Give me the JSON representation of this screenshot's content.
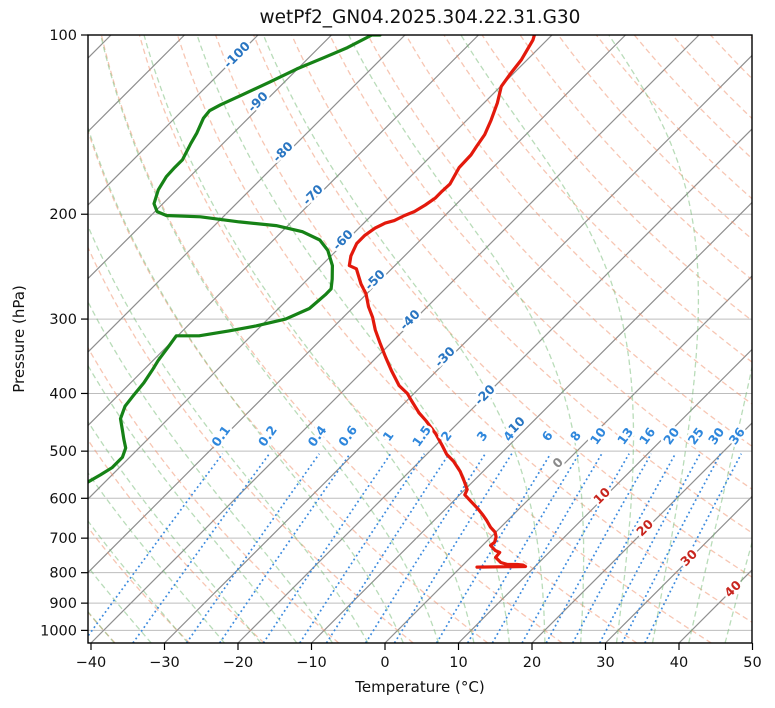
{
  "title": "wetPf2_GN04.2025.304.22.31.G30",
  "chart_data": {
    "type": "line",
    "projection": "skew-t-log-p",
    "title": "wetPf2_GN04.2025.304.22.31.G30",
    "xlabel": "Temperature (°C)",
    "ylabel": "Pressure (hPa)",
    "xlim": [
      -40.4,
      50
    ],
    "pressure_lim": [
      1050,
      100
    ],
    "grid": true,
    "x_ticks": [
      {
        "value": -40,
        "label": "−40"
      },
      {
        "value": -30,
        "label": "−30"
      },
      {
        "value": -20,
        "label": "−20"
      },
      {
        "value": -10,
        "label": "−10"
      },
      {
        "value": 0,
        "label": "0"
      },
      {
        "value": 10,
        "label": "10"
      },
      {
        "value": 20,
        "label": "20"
      },
      {
        "value": 30,
        "label": "30"
      },
      {
        "value": 40,
        "label": "40"
      },
      {
        "value": 50,
        "label": "50"
      }
    ],
    "p_ticks": [
      {
        "value": 100,
        "label": "100"
      },
      {
        "value": 200,
        "label": "200"
      },
      {
        "value": 300,
        "label": "300"
      },
      {
        "value": 400,
        "label": "400"
      },
      {
        "value": 500,
        "label": "500"
      },
      {
        "value": 600,
        "label": "600"
      },
      {
        "value": 700,
        "label": "700"
      },
      {
        "value": 800,
        "label": "800"
      },
      {
        "value": 900,
        "label": "900"
      },
      {
        "value": 1000,
        "label": "1000"
      }
    ],
    "isotherms": {
      "start_c": -150,
      "end_c": 50,
      "step_c": 10,
      "color": "#8f8f8f"
    },
    "isotherm_labels": [
      {
        "value": -100,
        "text": "-100",
        "color": "#2a76c2"
      },
      {
        "value": -90,
        "text": "-90",
        "color": "#2a76c2"
      },
      {
        "value": -80,
        "text": "-80",
        "color": "#2a76c2"
      },
      {
        "value": -70,
        "text": "-70",
        "color": "#2a76c2"
      },
      {
        "value": -60,
        "text": "-60",
        "color": "#2a76c2"
      },
      {
        "value": -50,
        "text": "-50",
        "color": "#2a76c2"
      },
      {
        "value": -40,
        "text": "-40",
        "color": "#2a76c2"
      },
      {
        "value": -30,
        "text": "-30",
        "color": "#2a76c2"
      },
      {
        "value": -20,
        "text": "-20",
        "color": "#2a76c2"
      },
      {
        "value": -10,
        "text": "-10",
        "color": "#2a76c2"
      },
      {
        "value": 0,
        "text": "0",
        "color": "#8a8a8a"
      },
      {
        "value": 10,
        "text": "10",
        "color": "#c8261f"
      },
      {
        "value": 20,
        "text": "20",
        "color": "#c8261f"
      },
      {
        "value": 30,
        "text": "30",
        "color": "#c8261f"
      },
      {
        "value": 40,
        "text": "40",
        "color": "#c8261f"
      }
    ],
    "dry_adiabats": {
      "start_c": -40,
      "end_c": 200,
      "step_c": 10,
      "color": "#ef8d68",
      "opacity": 0.5
    },
    "moist_adiabats": {
      "start_c": -60,
      "end_c": 60,
      "step_c": 5,
      "color": "#74b974",
      "opacity": 0.5
    },
    "mixing_ratio_lines": {
      "values_g_per_kg": [
        0.1,
        0.2,
        0.4,
        0.6,
        1,
        1.5,
        2,
        3,
        4,
        6,
        8,
        10,
        13,
        16,
        20,
        25,
        30,
        36
      ],
      "color": "#3b8ade",
      "label_color": "#2f87dc",
      "p_top": 505
    },
    "series": [
      {
        "name": "temperature",
        "color": "#e3190c",
        "points_p_t": [
          [
            100,
            -62.4
          ],
          [
            102,
            -61.9
          ],
          [
            110,
            -60.8
          ],
          [
            116,
            -60.4
          ],
          [
            122,
            -59.9
          ],
          [
            130,
            -58.2
          ],
          [
            139,
            -56.7
          ],
          [
            147,
            -55.6
          ],
          [
            154,
            -55.1
          ],
          [
            159,
            -54.7
          ],
          [
            167,
            -54.6
          ],
          [
            178,
            -53.6
          ],
          [
            183,
            -53.7
          ],
          [
            188,
            -53.7
          ],
          [
            193,
            -54.1
          ],
          [
            198,
            -54.7
          ],
          [
            201,
            -55.5
          ],
          [
            205,
            -56.2
          ],
          [
            207,
            -57.1
          ],
          [
            211,
            -57.8
          ],
          [
            217,
            -58.2
          ],
          [
            224,
            -58.2
          ],
          [
            235,
            -57.3
          ],
          [
            244,
            -56.2
          ],
          [
            247,
            -54.8
          ],
          [
            262,
            -52.1
          ],
          [
            272,
            -50.1
          ],
          [
            286,
            -48.0
          ],
          [
            298,
            -46.0
          ],
          [
            313,
            -43.9
          ],
          [
            329,
            -41.5
          ],
          [
            347,
            -38.9
          ],
          [
            366,
            -36.2
          ],
          [
            388,
            -33.1
          ],
          [
            400,
            -30.9
          ],
          [
            411,
            -29.4
          ],
          [
            431,
            -26.7
          ],
          [
            445,
            -24.6
          ],
          [
            468,
            -21.5
          ],
          [
            490,
            -19.0
          ],
          [
            506,
            -17.3
          ],
          [
            520,
            -15.4
          ],
          [
            541,
            -13.1
          ],
          [
            562,
            -11.2
          ],
          [
            580,
            -9.7
          ],
          [
            592,
            -9.3
          ],
          [
            608,
            -7.5
          ],
          [
            625,
            -5.6
          ],
          [
            640,
            -4.1
          ],
          [
            653,
            -2.9
          ],
          [
            671,
            -1.4
          ],
          [
            684,
            -0.1
          ],
          [
            697,
            0.7
          ],
          [
            711,
            1.2
          ],
          [
            720,
            1.1
          ],
          [
            734,
            2.4
          ],
          [
            740,
            3.3
          ],
          [
            754,
            3.4
          ],
          [
            769,
            4.8
          ],
          [
            775,
            6.0
          ],
          [
            775,
            7.3
          ],
          [
            777,
            8.2
          ],
          [
            781,
            8.7
          ],
          [
            783,
            2.2
          ]
        ]
      },
      {
        "name": "dewpoint",
        "color": "#168216",
        "points_p_t": [
          [
            100,
            -83.4
          ],
          [
            100,
            -84.5
          ],
          [
            105,
            -86.1
          ],
          [
            109,
            -87.9
          ],
          [
            114,
            -90.1
          ],
          [
            120,
            -92.0
          ],
          [
            126,
            -94.0
          ],
          [
            131,
            -95.6
          ],
          [
            134,
            -96.3
          ],
          [
            138,
            -96.1
          ],
          [
            146,
            -95.0
          ],
          [
            152,
            -94.4
          ],
          [
            162,
            -93.3
          ],
          [
            167,
            -93.3
          ],
          [
            173,
            -93.2
          ],
          [
            182,
            -92.5
          ],
          [
            192,
            -91.2
          ],
          [
            198,
            -89.7
          ],
          [
            201,
            -87.9
          ],
          [
            202,
            -83.1
          ],
          [
            206,
            -77.1
          ],
          [
            209,
            -71.6
          ],
          [
            214,
            -67.2
          ],
          [
            221,
            -63.7
          ],
          [
            230,
            -61.2
          ],
          [
            244,
            -58.5
          ],
          [
            257,
            -56.7
          ],
          [
            267,
            -55.5
          ],
          [
            273,
            -55.5
          ],
          [
            288,
            -55.8
          ],
          [
            300,
            -57.6
          ],
          [
            308,
            -60.7
          ],
          [
            314,
            -63.7
          ],
          [
            320,
            -67.1
          ],
          [
            320,
            -70.2
          ],
          [
            333,
            -69.8
          ],
          [
            352,
            -69.3
          ],
          [
            365,
            -68.8
          ],
          [
            384,
            -68.2
          ],
          [
            403,
            -67.9
          ],
          [
            420,
            -67.6
          ],
          [
            441,
            -66.5
          ],
          [
            462,
            -64.6
          ],
          [
            477,
            -63.3
          ],
          [
            494,
            -61.8
          ],
          [
            512,
            -61.0
          ],
          [
            533,
            -61.0
          ],
          [
            548,
            -61.6
          ],
          [
            563,
            -62.3
          ]
        ]
      }
    ]
  }
}
